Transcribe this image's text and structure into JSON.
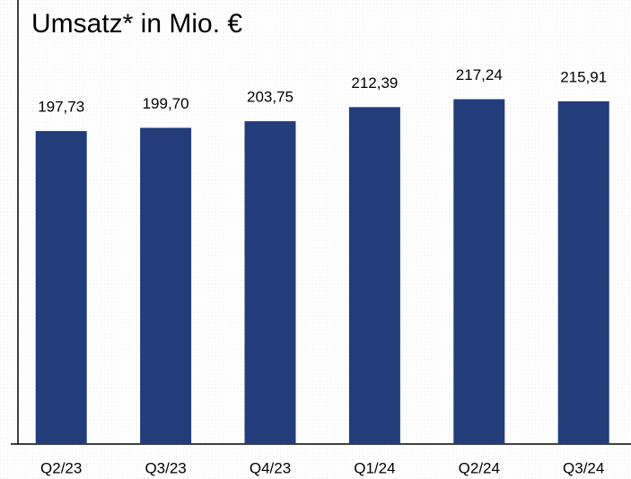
{
  "chart_data": {
    "type": "bar",
    "title": "Umsatz* in Mio. €",
    "categories": [
      "Q2/23",
      "Q3/23",
      "Q4/23",
      "Q1/24",
      "Q2/24",
      "Q3/24"
    ],
    "values": [
      197.73,
      199.7,
      203.75,
      212.39,
      217.24,
      215.91
    ],
    "value_labels": [
      "197,73",
      "199,70",
      "203,75",
      "212,39",
      "217,24",
      "215,91"
    ],
    "color": "#223d7a",
    "ylim": [
      6,
      278
    ]
  }
}
